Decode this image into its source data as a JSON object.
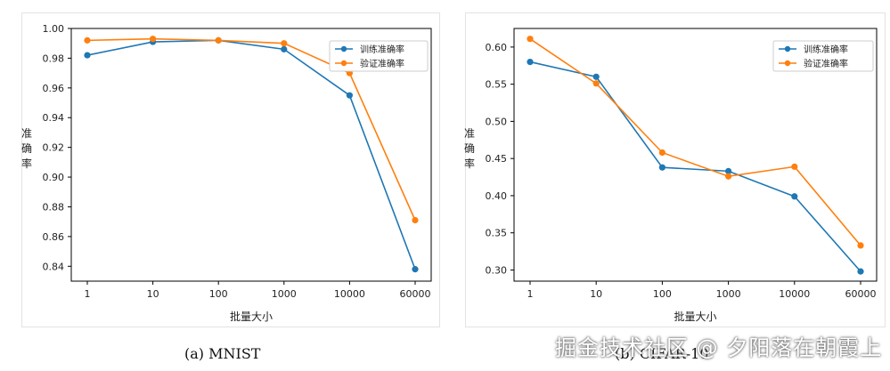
{
  "chart_data": [
    {
      "type": "line",
      "caption": "(a) MNIST",
      "categories": [
        "1",
        "10",
        "100",
        "1000",
        "10000",
        "60000"
      ],
      "series": [
        {
          "name": "训练准确率",
          "color": "#1f77b4",
          "values": [
            0.982,
            0.991,
            0.992,
            0.986,
            0.955,
            0.838
          ]
        },
        {
          "name": "验证准确率",
          "color": "#ff7f0e",
          "values": [
            0.992,
            0.993,
            0.992,
            0.99,
            0.97,
            0.871
          ]
        }
      ],
      "xlabel": "批量大小",
      "ylabel": "准确率",
      "ylim": [
        0.83,
        1.0
      ],
      "yticks": [
        "0.84",
        "0.86",
        "0.88",
        "0.90",
        "0.92",
        "0.94",
        "0.96",
        "0.98",
        "1.00"
      ],
      "legend": "top-right",
      "grid": false
    },
    {
      "type": "line",
      "caption": "(b) CIFAR-10",
      "categories": [
        "1",
        "10",
        "100",
        "1000",
        "10000",
        "60000"
      ],
      "series": [
        {
          "name": "训练准确率",
          "color": "#1f77b4",
          "values": [
            0.58,
            0.56,
            0.438,
            0.433,
            0.399,
            0.298
          ]
        },
        {
          "name": "验证准确率",
          "color": "#ff7f0e",
          "values": [
            0.611,
            0.551,
            0.458,
            0.426,
            0.439,
            0.333
          ]
        }
      ],
      "xlabel": "批量大小",
      "ylabel": "准确率",
      "ylim": [
        0.285,
        0.625
      ],
      "yticks": [
        "0.30",
        "0.35",
        "0.40",
        "0.45",
        "0.50",
        "0.55",
        "0.60"
      ],
      "legend": "top-right",
      "grid": false
    }
  ],
  "watermark": "掘金技术社区 @ 夕阳落在朝霞上"
}
